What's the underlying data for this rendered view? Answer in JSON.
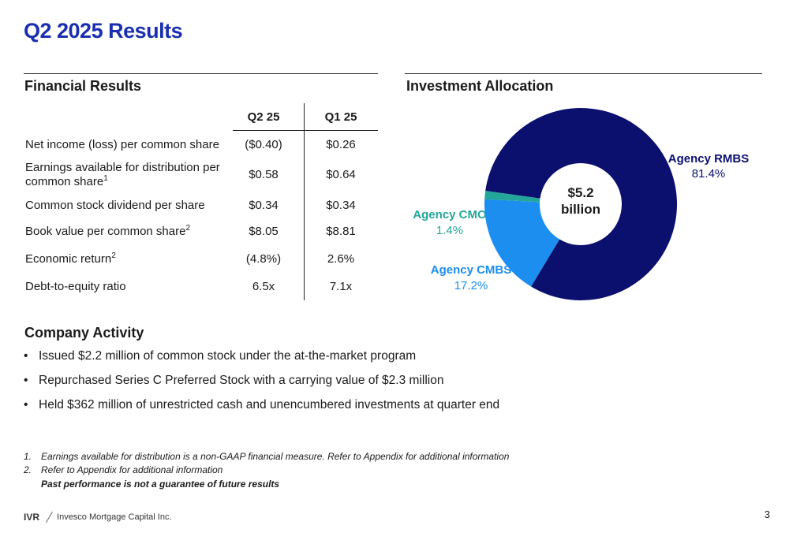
{
  "page": {
    "title": "Q2 2025 Results",
    "number": "3"
  },
  "financial_results": {
    "heading": "Financial Results",
    "columns": [
      "Q2 25",
      "Q1 25"
    ],
    "rows": [
      {
        "label": "Net income (loss) per common share",
        "sup": "",
        "q2": "($0.40)",
        "q1": "$0.26"
      },
      {
        "label": "Earnings available for distribution per common share",
        "sup": "1",
        "q2": "$0.58",
        "q1": "$0.64"
      },
      {
        "label": "Common stock dividend per share",
        "sup": "",
        "q2": "$0.34",
        "q1": "$0.34"
      },
      {
        "label": "Book value per common share",
        "sup": "2",
        "q2": "$8.05",
        "q1": "$8.81"
      },
      {
        "label": "Economic return",
        "sup": "2",
        "q2": "(4.8%)",
        "q1": "2.6%"
      },
      {
        "label": "Debt-to-equity ratio",
        "sup": "",
        "q2": "6.5x",
        "q1": "7.1x"
      }
    ]
  },
  "investment_allocation": {
    "heading": "Investment Allocation",
    "center_label_line1": "$5.2",
    "center_label_line2": "billion"
  },
  "chart_data": {
    "type": "pie",
    "donut": true,
    "title": "Investment Allocation",
    "slices": [
      {
        "name": "Agency RMBS",
        "value": 81.4,
        "label": "81.4%",
        "color": "#0b0f6e"
      },
      {
        "name": "Agency CMBS",
        "value": 17.2,
        "label": "17.2%",
        "color": "#1b8ef0"
      },
      {
        "name": "Agency CMO",
        "value": 1.4,
        "label": "1.4%",
        "color": "#23a59a"
      }
    ],
    "center_text": "$5.2 billion"
  },
  "company_activity": {
    "heading": "Company Activity",
    "bullet_glyph": "•",
    "items": [
      "Issued $2.2 million of common stock under the at-the-market program",
      "Repurchased Series C Preferred Stock with a carrying value of $2.3 million",
      "Held $362 million of unrestricted cash and unencumbered investments at quarter end"
    ]
  },
  "footnotes": {
    "items": [
      {
        "num": "1.",
        "text": "Earnings available for distribution is a non-GAAP financial measure. Refer to Appendix for additional information"
      },
      {
        "num": "2.",
        "text": "Refer to Appendix for additional information"
      }
    ],
    "disclaimer": "Past performance is not a guarantee of future results"
  },
  "footer": {
    "ticker": "IVR",
    "company": "Invesco Mortgage Capital Inc."
  },
  "colors": {
    "title": "#1a2fb0",
    "rmbs": "#0b0f6e",
    "cmbs": "#1b8ef0",
    "cmo": "#23a59a"
  }
}
